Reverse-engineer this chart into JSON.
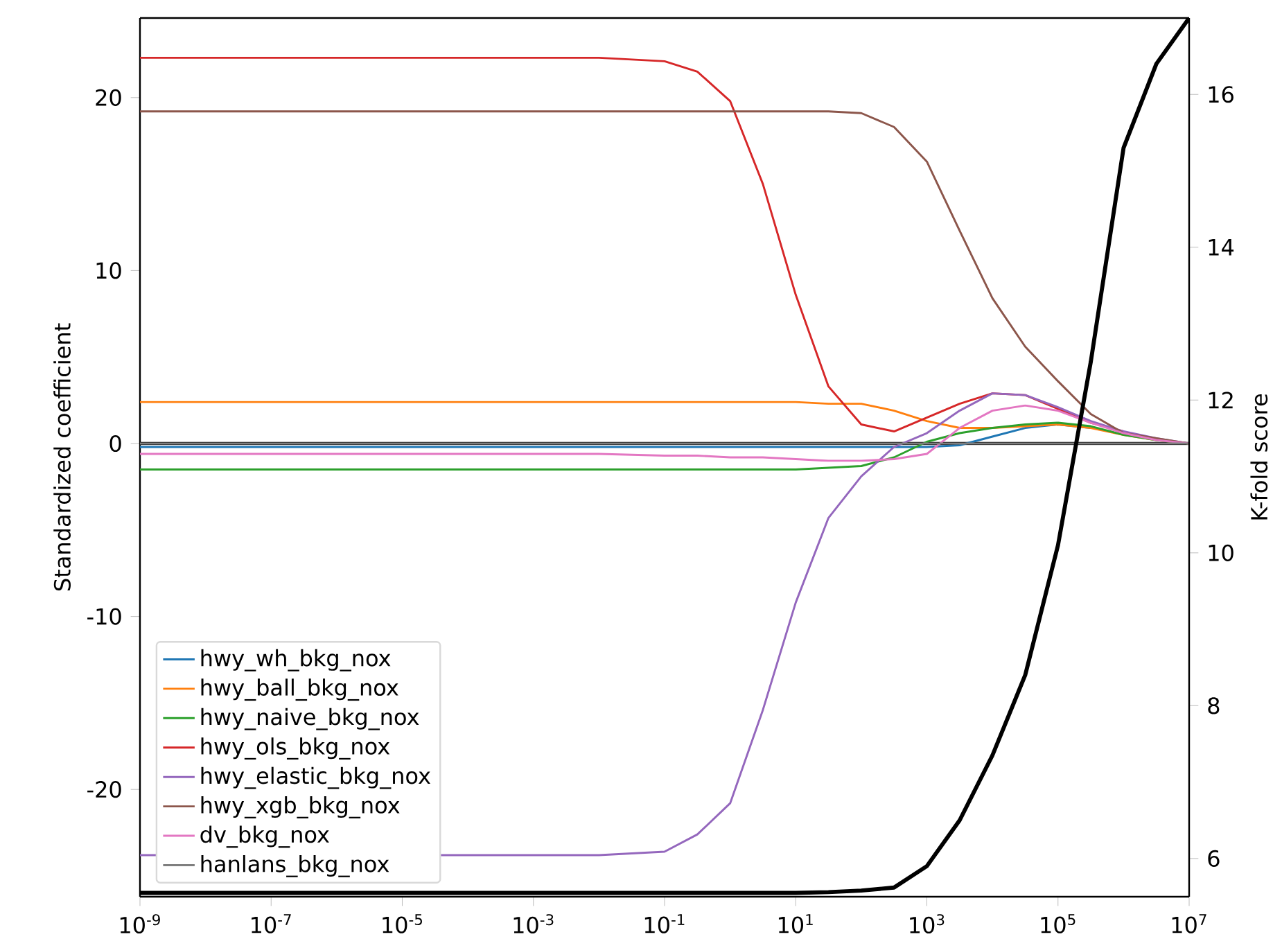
{
  "chart_data": {
    "type": "line",
    "xlabel": null,
    "ylabel": "Standardized coefficient",
    "y2label": "K-fold score",
    "log": "x",
    "legend": "bottom left",
    "line_style": "solid",
    "x": [
      1e-09,
      0.01,
      0.1,
      0.316,
      1,
      3.16,
      10,
      31.6,
      100,
      316,
      1000,
      3162,
      10000,
      31623,
      100000,
      316228,
      1000000,
      3162278,
      10000000
    ],
    "xlim": [
      1e-09,
      10000000
    ],
    "xticks": [
      {
        "value": 1e-09,
        "label": "10$^{-9}$"
      },
      {
        "value": 1e-07,
        "label": "10$^{-7}$"
      },
      {
        "value": 1e-05,
        "label": "10$^{-5}$"
      },
      {
        "value": 0.001,
        "label": "10$^{-3}$"
      },
      {
        "value": 0.1,
        "label": "10$^{-1}$"
      },
      {
        "value": 10,
        "label": "10$^{1}$"
      },
      {
        "value": 1000,
        "label": "10$^{3}$"
      },
      {
        "value": 100000,
        "label": "10$^{5}$"
      },
      {
        "value": 10000000,
        "label": "10$^{7}$"
      }
    ],
    "ylim": [
      -26.2,
      24.6
    ],
    "yticks": [
      -20,
      -10,
      0,
      10,
      20
    ],
    "y2lim": [
      5.5,
      17.0
    ],
    "y2ticks": [
      6,
      8,
      10,
      12,
      14,
      16
    ],
    "ref_lines": [
      {
        "axis": "y",
        "value": 0,
        "color": "#000000"
      }
    ],
    "series": [
      {
        "name": "hwy_wh_bkg_nox",
        "color": "#1f77b4",
        "values": [
          -0.2,
          -0.2,
          -0.2,
          -0.2,
          -0.2,
          -0.2,
          -0.2,
          -0.2,
          -0.2,
          -0.2,
          -0.2,
          -0.1,
          0.4,
          0.9,
          1.1,
          0.9,
          null,
          null,
          null
        ]
      },
      {
        "name": "hwy_ball_bkg_nox",
        "color": "#ff7f0e",
        "values": [
          2.4,
          2.4,
          2.4,
          2.4,
          2.4,
          2.4,
          2.4,
          2.3,
          2.3,
          1.9,
          1.3,
          0.9,
          0.9,
          1.0,
          1.1,
          0.9,
          0.5,
          0.2,
          0.0
        ]
      },
      {
        "name": "hwy_naive_bkg_nox",
        "color": "#2ca02c",
        "values": [
          -1.5,
          -1.5,
          -1.5,
          -1.5,
          -1.5,
          -1.5,
          -1.5,
          -1.4,
          -1.3,
          -0.8,
          0.1,
          0.6,
          0.9,
          1.1,
          1.2,
          1.0,
          0.5,
          0.2,
          0.0
        ]
      },
      {
        "name": "hwy_ols_bkg_nox",
        "color": "#d62728",
        "values": [
          22.3,
          22.3,
          22.1,
          21.5,
          19.8,
          15.0,
          8.6,
          3.3,
          1.1,
          0.7,
          1.5,
          2.3,
          2.9,
          2.8,
          2.0,
          1.2,
          0.7,
          null,
          null
        ]
      },
      {
        "name": "hwy_elastic_bkg_nox",
        "color": "#9467bd",
        "values": [
          -23.8,
          -23.8,
          -23.6,
          -22.6,
          -20.8,
          -15.4,
          -9.2,
          -4.3,
          -1.9,
          -0.2,
          0.6,
          1.9,
          2.9,
          2.8,
          2.1,
          1.3,
          0.7,
          0.3,
          0.0
        ]
      },
      {
        "name": "hwy_xgb_bkg_nox",
        "color": "#8c564b",
        "values": [
          19.2,
          19.2,
          19.2,
          19.2,
          19.2,
          19.2,
          19.2,
          19.2,
          19.1,
          18.3,
          16.3,
          12.3,
          8.4,
          5.6,
          3.6,
          1.7,
          0.6,
          0.3,
          0.0
        ]
      },
      {
        "name": "dv_bkg_nox",
        "color": "#e377c2",
        "values": [
          -0.6,
          -0.6,
          -0.7,
          -0.7,
          -0.8,
          -0.8,
          -0.9,
          -1.0,
          -1.0,
          -0.9,
          -0.6,
          0.9,
          1.9,
          2.2,
          1.9,
          1.2,
          0.6,
          0.2,
          0.0
        ]
      },
      {
        "name": "hanlans_bkg_nox",
        "color": "#7f7f7f",
        "values": [
          0,
          0,
          0,
          0,
          0,
          0,
          0,
          0,
          0,
          0,
          0,
          0,
          0,
          0,
          0,
          0,
          0,
          0,
          0
        ]
      },
      {
        "color": "#000000",
        "axis": "y2",
        "values": [
          5.55,
          5.55,
          5.55,
          5.55,
          5.55,
          5.55,
          5.55,
          5.56,
          5.58,
          5.62,
          5.9,
          6.5,
          7.35,
          8.4,
          10.1,
          12.5,
          15.3,
          16.4,
          17.0
        ]
      }
    ]
  }
}
